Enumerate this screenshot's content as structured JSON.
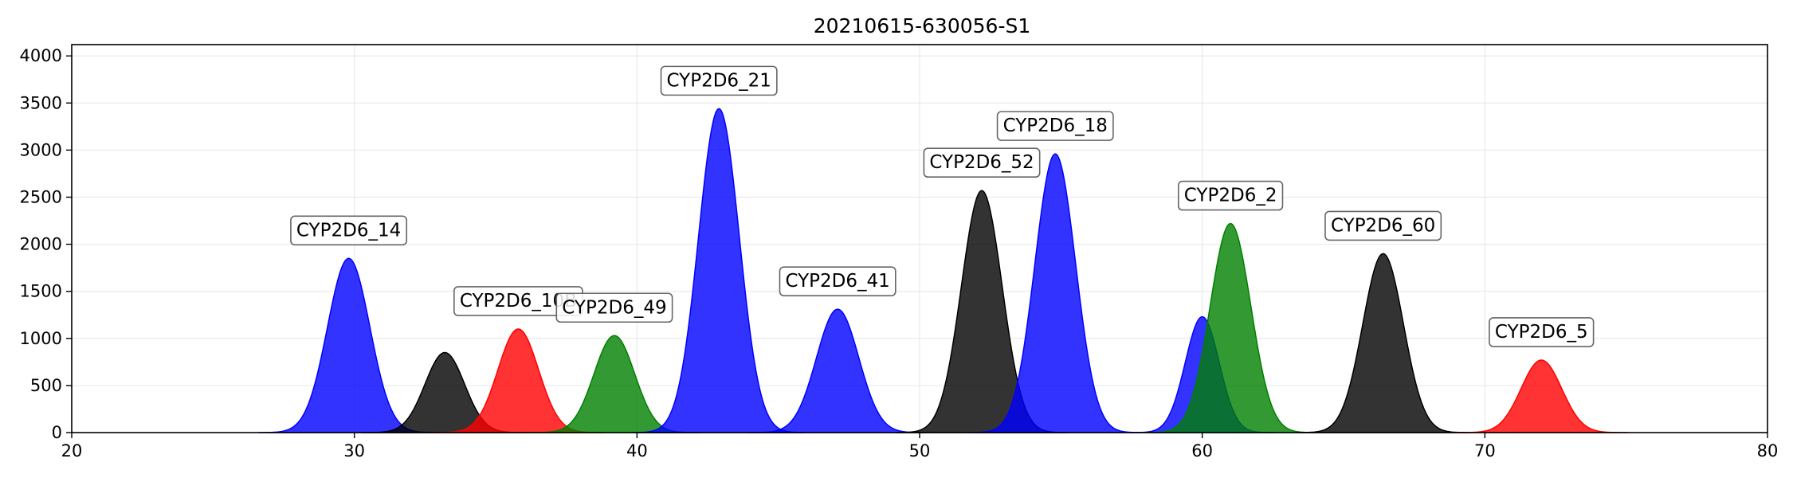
{
  "chart_data": {
    "type": "area",
    "title": "20210615-630056-S1",
    "xlabel": "",
    "ylabel": "",
    "xlim": [
      20,
      80
    ],
    "ylim": [
      0,
      4120
    ],
    "x_ticks": [
      20,
      30,
      40,
      50,
      60,
      70,
      80
    ],
    "y_ticks": [
      0,
      500,
      1000,
      1500,
      2000,
      2500,
      3000,
      3500,
      4000
    ],
    "grid": true,
    "colors": {
      "blue": "#0000ff",
      "black": "#000000",
      "red": "#ff0000",
      "green": "#008000"
    },
    "peaks": [
      {
        "label": "CYP2D6_14",
        "x": 29.8,
        "y": 1850,
        "sigma": 0.75,
        "color": "blue",
        "show_label": true
      },
      {
        "label": "",
        "x": 33.2,
        "y": 850,
        "sigma": 0.7,
        "color": "black",
        "show_label": false
      },
      {
        "label": "CYP2D6_10B",
        "x": 35.8,
        "y": 1100,
        "sigma": 0.72,
        "color": "red",
        "show_label": true
      },
      {
        "label": "CYP2D6_49",
        "x": 39.2,
        "y": 1030,
        "sigma": 0.72,
        "color": "green",
        "show_label": true
      },
      {
        "label": "CYP2D6_21",
        "x": 42.9,
        "y": 3440,
        "sigma": 0.72,
        "color": "blue",
        "show_label": true
      },
      {
        "label": "CYP2D6_41",
        "x": 47.1,
        "y": 1310,
        "sigma": 0.75,
        "color": "blue",
        "show_label": true
      },
      {
        "label": "CYP2D6_52",
        "x": 52.2,
        "y": 2570,
        "sigma": 0.72,
        "color": "black",
        "show_label": true
      },
      {
        "label": "CYP2D6_18",
        "x": 54.8,
        "y": 2960,
        "sigma": 0.72,
        "color": "blue",
        "show_label": true
      },
      {
        "label": "",
        "x": 60.0,
        "y": 1230,
        "sigma": 0.6,
        "color": "blue",
        "show_label": false
      },
      {
        "label": "CYP2D6_2",
        "x": 61.0,
        "y": 2220,
        "sigma": 0.72,
        "color": "green",
        "show_label": true
      },
      {
        "label": "CYP2D6_60",
        "x": 66.4,
        "y": 1900,
        "sigma": 0.72,
        "color": "black",
        "show_label": true
      },
      {
        "label": "CYP2D6_5",
        "x": 72.0,
        "y": 770,
        "sigma": 0.72,
        "color": "red",
        "show_label": true
      }
    ]
  }
}
